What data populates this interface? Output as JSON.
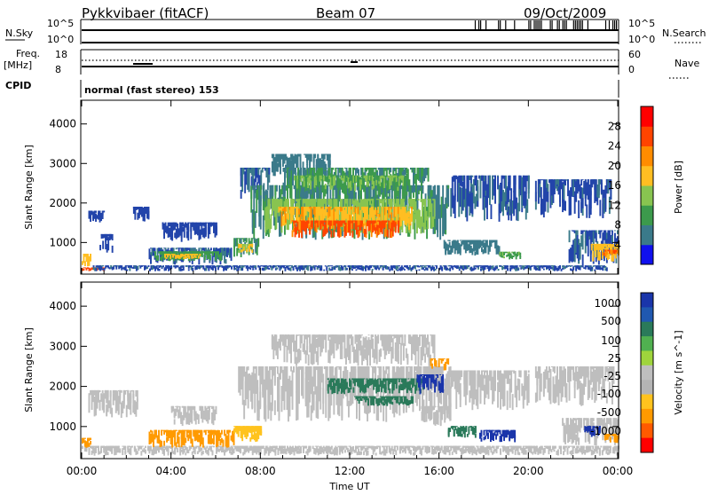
{
  "header": {
    "station": "Pykkvibaer (fitACF)",
    "beam": "Beam 07",
    "date": "09/Oct/2009"
  },
  "params": {
    "nsky_label": "N.Sky",
    "nsky_top": "10^5",
    "nsky_bottom": "10^0",
    "nsearch_label": "N.Search",
    "nsearch_top": "10^5",
    "nsearch_bottom": "10^0",
    "freq_label": "Freq.",
    "freq_unit": "[MHz]",
    "freq_top": "18",
    "freq_bottom": "8",
    "nave_label": "Nave",
    "nave_top": "60",
    "nave_bottom": "0",
    "cpid_label": "CPID",
    "cpid_value": "normal (fast stereo) 153"
  },
  "colors": {
    "power": [
      "#1010ee",
      "#2244aa",
      "#3a7a8a",
      "#3c9a4c",
      "#88c450",
      "#ffbe22",
      "#ff8c00",
      "#ff4400",
      "#ff0000"
    ],
    "velocity_scale": [
      "#1a35aa",
      "#2058b0",
      "#2a7a5a",
      "#50b050",
      "#9fd43c",
      "#bebebe",
      "#b4b4b4",
      "#ffc31e",
      "#ff9a00",
      "#ff5a00",
      "#ff0000"
    ],
    "velocity_gray": "#bebebe"
  },
  "chart_data": [
    {
      "type": "heatmap",
      "name": "power",
      "ylabel": "Slant Range [km]",
      "xlabel": "",
      "y_ticks": [
        "1000",
        "2000",
        "3000",
        "4000"
      ],
      "ylim": [
        200,
        4600
      ],
      "xlim": [
        0,
        24
      ],
      "colorbar_label": "Power [dB]",
      "colorbar_ticks": [
        "4",
        "8",
        "12",
        "16",
        "20",
        "24",
        "28"
      ],
      "colorbar_range": [
        0,
        32
      ],
      "regions": [
        {
          "t0": 0.0,
          "t1": 1.0,
          "r0": 250,
          "r1": 350,
          "level": 30
        },
        {
          "t0": 0.0,
          "t1": 0.4,
          "r0": 350,
          "r1": 700,
          "level": 22
        },
        {
          "t0": 0.5,
          "t1": 23.5,
          "r0": 250,
          "r1": 400,
          "level": 7
        },
        {
          "t0": 0.3,
          "t1": 1.0,
          "r0": 1500,
          "r1": 1800,
          "level": 6
        },
        {
          "t0": 0.8,
          "t1": 1.4,
          "r0": 700,
          "r1": 1200,
          "level": 6
        },
        {
          "t0": 2.3,
          "t1": 3.0,
          "r0": 1500,
          "r1": 1900,
          "level": 6
        },
        {
          "t0": 3.0,
          "t1": 6.7,
          "r0": 420,
          "r1": 850,
          "level": 8
        },
        {
          "t0": 3.2,
          "t1": 6.2,
          "r0": 500,
          "r1": 760,
          "level": 14
        },
        {
          "t0": 3.7,
          "t1": 5.3,
          "r0": 560,
          "r1": 700,
          "level": 22
        },
        {
          "t0": 3.6,
          "t1": 6.0,
          "r0": 1000,
          "r1": 1500,
          "level": 6
        },
        {
          "t0": 6.8,
          "t1": 7.9,
          "r0": 600,
          "r1": 1100,
          "level": 12
        },
        {
          "t0": 7.0,
          "t1": 7.6,
          "r0": 700,
          "r1": 950,
          "level": 20
        },
        {
          "t0": 7.1,
          "t1": 8.4,
          "r0": 2100,
          "r1": 2900,
          "level": 8
        },
        {
          "t0": 7.5,
          "t1": 16.4,
          "r0": 1050,
          "r1": 2450,
          "level": 12
        },
        {
          "t0": 8.5,
          "t1": 11.2,
          "r0": 2600,
          "r1": 3250,
          "level": 10
        },
        {
          "t0": 9.0,
          "t1": 15.5,
          "r0": 2100,
          "r1": 2900,
          "level": 12
        },
        {
          "t0": 9.5,
          "t1": 14.5,
          "r0": 2300,
          "r1": 2700,
          "level": 16
        },
        {
          "t0": 8.2,
          "t1": 15.8,
          "r0": 1200,
          "r1": 2100,
          "level": 18
        },
        {
          "t0": 8.8,
          "t1": 14.8,
          "r0": 1300,
          "r1": 1900,
          "level": 23
        },
        {
          "t0": 9.4,
          "t1": 14.2,
          "r0": 1100,
          "r1": 1550,
          "level": 29
        },
        {
          "t0": 16.5,
          "t1": 20.0,
          "r0": 1500,
          "r1": 2700,
          "level": 7
        },
        {
          "t0": 16.2,
          "t1": 18.7,
          "r0": 650,
          "r1": 1050,
          "level": 10
        },
        {
          "t0": 18.7,
          "t1": 19.6,
          "r0": 550,
          "r1": 750,
          "level": 15
        },
        {
          "t0": 20.3,
          "t1": 23.7,
          "r0": 1600,
          "r1": 2600,
          "level": 7
        },
        {
          "t0": 21.8,
          "t1": 24.0,
          "r0": 400,
          "r1": 1300,
          "level": 7
        },
        {
          "t0": 22.8,
          "t1": 24.0,
          "r0": 500,
          "r1": 950,
          "level": 22
        },
        {
          "t0": 23.3,
          "t1": 24.0,
          "r0": 600,
          "r1": 800,
          "level": 28
        }
      ]
    },
    {
      "type": "heatmap",
      "name": "velocity",
      "ylabel": "Slant Range [km]",
      "xlabel": "Time UT",
      "x_ticks": [
        "00:00",
        "04:00",
        "08:00",
        "12:00",
        "16:00",
        "20:00",
        "00:00"
      ],
      "y_ticks": [
        "1000",
        "2000",
        "3000",
        "4000"
      ],
      "ylim": [
        200,
        4600
      ],
      "xlim": [
        0,
        24
      ],
      "colorbar_label": "Velocity [m s^-1]",
      "colorbar_ticks": [
        "1000",
        "500",
        "100",
        "25",
        "-25",
        "-100",
        "-500",
        "-1000"
      ],
      "regions": [
        {
          "t0": 0.0,
          "t1": 24.0,
          "r0": 250,
          "r1": 500,
          "level": 0
        },
        {
          "t0": 0.0,
          "t1": 0.4,
          "r0": 450,
          "r1": 700,
          "level": -300
        },
        {
          "t0": 0.3,
          "t1": 2.5,
          "r0": 1200,
          "r1": 1900,
          "level": 0
        },
        {
          "t0": 3.0,
          "t1": 6.8,
          "r0": 450,
          "r1": 900,
          "level": -300
        },
        {
          "t0": 4.0,
          "t1": 6.0,
          "r0": 1000,
          "r1": 1500,
          "level": 0
        },
        {
          "t0": 6.8,
          "t1": 8.0,
          "r0": 600,
          "r1": 1000,
          "level": -50
        },
        {
          "t0": 7.0,
          "t1": 16.5,
          "r0": 1100,
          "r1": 2500,
          "level": 0
        },
        {
          "t0": 8.5,
          "t1": 15.8,
          "r0": 2500,
          "r1": 3300,
          "level": 0
        },
        {
          "t0": 11.0,
          "t1": 15.3,
          "r0": 1800,
          "r1": 2200,
          "level": 300
        },
        {
          "t0": 12.2,
          "t1": 14.8,
          "r0": 1500,
          "r1": 1750,
          "level": 400
        },
        {
          "t0": 15.0,
          "t1": 16.2,
          "r0": 1800,
          "r1": 2300,
          "level": 800
        },
        {
          "t0": 15.6,
          "t1": 16.4,
          "r0": 2400,
          "r1": 2700,
          "level": -300
        },
        {
          "t0": 15.2,
          "t1": 16.5,
          "r0": 1000,
          "r1": 1500,
          "level": 0
        },
        {
          "t0": 16.4,
          "t1": 17.6,
          "r0": 700,
          "r1": 1000,
          "level": 300
        },
        {
          "t0": 17.8,
          "t1": 19.4,
          "r0": 580,
          "r1": 900,
          "level": 900
        },
        {
          "t0": 16.5,
          "t1": 20.0,
          "r0": 1400,
          "r1": 2400,
          "level": 0
        },
        {
          "t0": 20.3,
          "t1": 23.8,
          "r0": 1500,
          "r1": 2500,
          "level": 0
        },
        {
          "t0": 21.5,
          "t1": 24.0,
          "r0": 500,
          "r1": 1200,
          "level": 0
        },
        {
          "t0": 22.5,
          "t1": 23.2,
          "r0": 700,
          "r1": 1000,
          "level": 600
        },
        {
          "t0": 23.4,
          "t1": 24.0,
          "r0": 550,
          "r1": 800,
          "level": -200
        }
      ]
    }
  ]
}
